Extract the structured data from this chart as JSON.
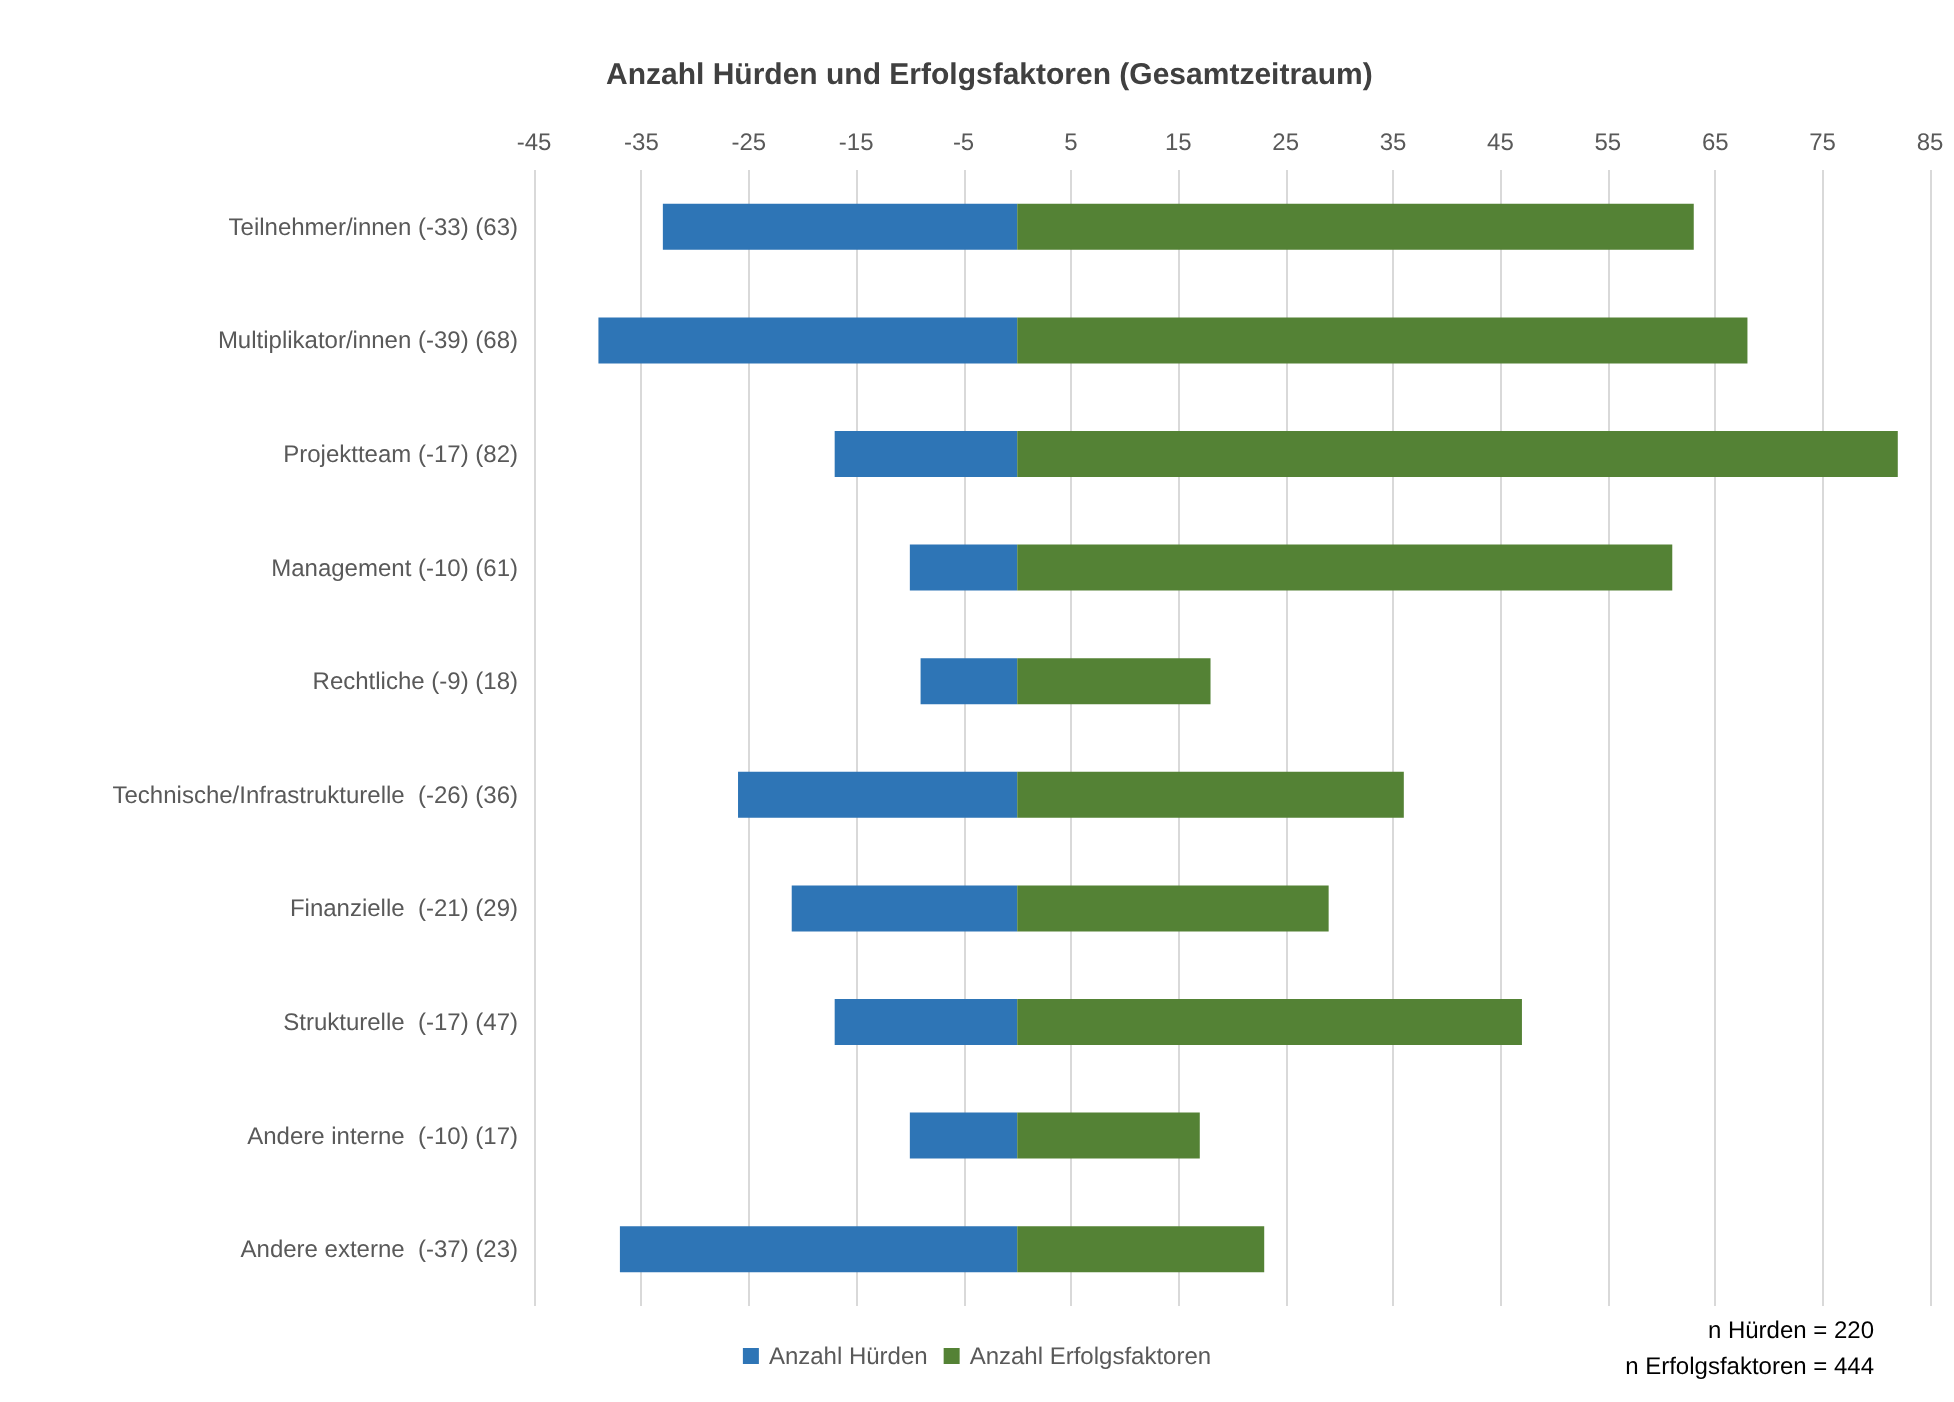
{
  "chart_data": {
    "type": "bar",
    "orientation": "horizontal",
    "stacked": true,
    "title": "Anzahl Hürden und Erfolgsfaktoren (Gesamtzeitraum)",
    "categories": [
      "Teilnehmer/innen (-33) (63)",
      "Multiplikator/innen (-39) (68)",
      "Projektteam (-17) (82)",
      "Management (-10) (61)",
      "Rechtliche (-9) (18)",
      "Technische/Infrastrukturelle  (-26) (36)",
      "Finanzielle  (-21) (29)",
      "Strukturelle  (-17) (47)",
      "Andere interne  (-10) (17)",
      "Andere externe  (-37) (23)"
    ],
    "series": [
      {
        "name": "Anzahl Hürden",
        "color": "#2e75b6",
        "values": [
          -33,
          -39,
          -17,
          -10,
          -9,
          -26,
          -21,
          -17,
          -10,
          -37
        ]
      },
      {
        "name": "Anzahl Erfolgsfaktoren",
        "color": "#548235",
        "values": [
          63,
          68,
          82,
          61,
          18,
          36,
          29,
          47,
          17,
          23
        ]
      }
    ],
    "xlim": [
      -45,
      85
    ],
    "xticks": [
      -45,
      -35,
      -25,
      -15,
      -5,
      5,
      15,
      25,
      35,
      45,
      55,
      65,
      75,
      85
    ],
    "grid": "x",
    "legend": "bottom",
    "annotations": [
      "n Hürden = 220",
      "n Erfolgsfaktoren = 444"
    ]
  }
}
